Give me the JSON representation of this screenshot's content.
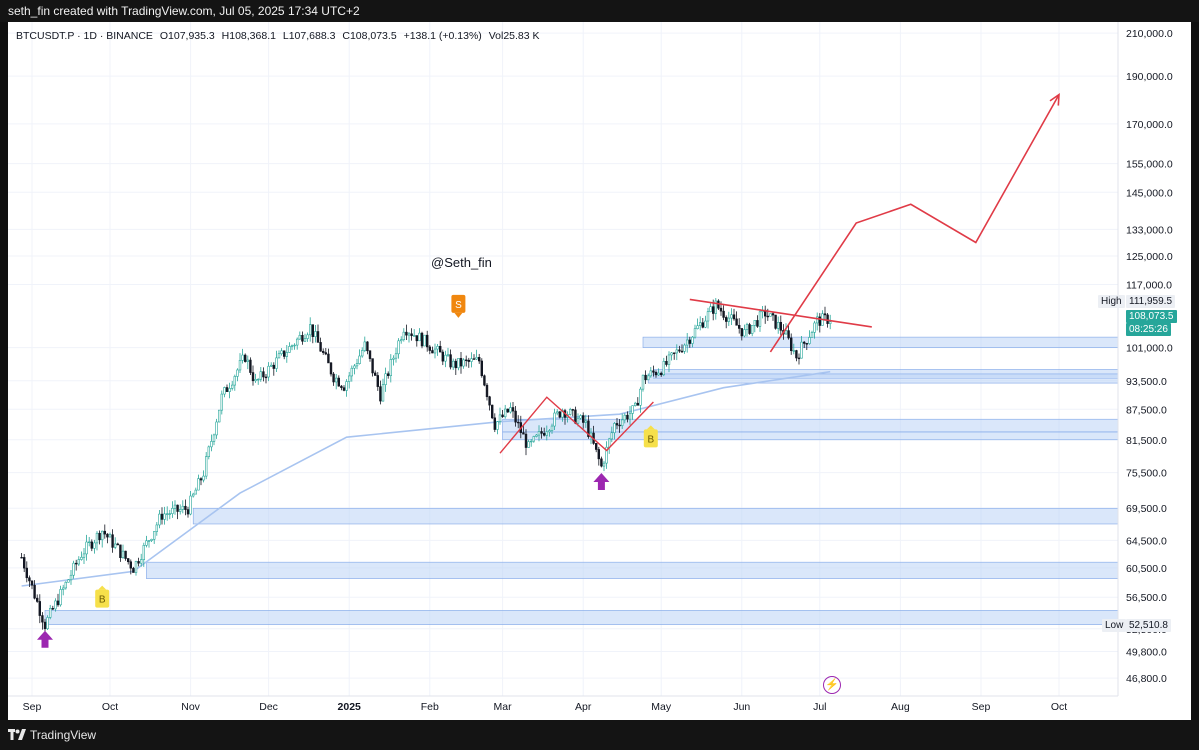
{
  "header": {
    "credit": "seth_fin created with TradingView.com, Jul 05, 2025 17:34 UTC+2"
  },
  "footer": {
    "brand": "TradingView"
  },
  "legend": {
    "symbol": "BTCUSDT.P · 1D · BINANCE",
    "open": "O107,935.3",
    "high": "H108,368.1",
    "low": "L107,688.3",
    "close": "C108,073.5",
    "change": "+138.1 (+0.13%)",
    "volume": "Vol25.83 K"
  },
  "watermark": "@Seth_fin",
  "price_tags": {
    "high_label": "High",
    "high_value": "111,959.5",
    "current_value": "108,073.5",
    "countdown": "08:25:26",
    "low_label": "Low",
    "low_value": "52,510.8"
  },
  "colors": {
    "up": "#26a69a",
    "down": "#131722",
    "red_line": "#e03b47",
    "zone": "#bcd3f5",
    "ma": "#a8c4f0",
    "current_tag": "#26a69a",
    "arrow": "#9c27b0",
    "buy_badge": "#f6e04a",
    "sell_badge": "#f0870f"
  },
  "chart_data": {
    "type": "candlestick",
    "y_scale": "log",
    "ylim": [
      45000,
      215000
    ],
    "y_ticks": [
      "210,000.0",
      "190,000.0",
      "170,000.0",
      "155,000.0",
      "145,000.0",
      "133,000.0",
      "125,000.0",
      "117,000.0",
      "101,000.0",
      "93,500.0",
      "87,500.0",
      "81,500.0",
      "75,500.0",
      "69,500.0",
      "64,500.0",
      "60,500.0",
      "56,500.0",
      "52,500.0",
      "49,800.0",
      "46,800.0"
    ],
    "x_labels": [
      "Sep",
      "Oct",
      "Nov",
      "Dec",
      "2025",
      "Feb",
      "Mar",
      "Apr",
      "May",
      "Jun",
      "Jul",
      "Aug",
      "Sep",
      "Oct"
    ],
    "x_label_dates": [
      "2024-09-01",
      "2024-10-01",
      "2024-11-01",
      "2024-12-01",
      "2025-01-01",
      "2025-02-01",
      "2025-03-01",
      "2025-04-01",
      "2025-05-01",
      "2025-06-01",
      "2025-07-01",
      "2025-08-01",
      "2025-09-01",
      "2025-10-01"
    ],
    "price_path": [
      [
        "2024-08-28",
        62000
      ],
      [
        "2024-09-06",
        53000
      ],
      [
        "2024-09-20",
        62500
      ],
      [
        "2024-09-28",
        66000
      ],
      [
        "2024-10-10",
        60500
      ],
      [
        "2024-10-21",
        68500
      ],
      [
        "2024-10-31",
        69500
      ],
      [
        "2024-11-06",
        75500
      ],
      [
        "2024-11-13",
        90000
      ],
      [
        "2024-11-22",
        99000
      ],
      [
        "2024-11-26",
        93000
      ],
      [
        "2024-12-05",
        98500
      ],
      [
        "2024-12-17",
        106000
      ],
      [
        "2024-12-26",
        94500
      ],
      [
        "2024-12-30",
        92500
      ],
      [
        "2025-01-07",
        101500
      ],
      [
        "2025-01-13",
        90500
      ],
      [
        "2025-01-22",
        106000
      ],
      [
        "2025-01-31",
        102000
      ],
      [
        "2025-02-10",
        97000
      ],
      [
        "2025-02-20",
        98000
      ],
      [
        "2025-02-26",
        84500
      ],
      [
        "2025-03-04",
        87500
      ],
      [
        "2025-03-11",
        80000
      ],
      [
        "2025-03-24",
        87500
      ],
      [
        "2025-04-02",
        84500
      ],
      [
        "2025-04-08",
        76500
      ],
      [
        "2025-04-13",
        84500
      ],
      [
        "2025-04-21",
        87500
      ],
      [
        "2025-04-24",
        94000
      ],
      [
        "2025-05-02",
        96500
      ],
      [
        "2025-05-12",
        103500
      ],
      [
        "2025-05-22",
        111500
      ],
      [
        "2025-06-02",
        104500
      ],
      [
        "2025-06-10",
        109500
      ],
      [
        "2025-06-17",
        105000
      ],
      [
        "2025-06-22",
        99000
      ],
      [
        "2025-06-30",
        107500
      ],
      [
        "2025-07-05",
        108073.5
      ]
    ],
    "ma_line": [
      [
        "2024-08-28",
        58000
      ],
      [
        "2024-10-10",
        60000
      ],
      [
        "2024-11-20",
        72000
      ],
      [
        "2024-12-31",
        82000
      ],
      [
        "2025-02-28",
        85000
      ],
      [
        "2025-04-15",
        86500
      ],
      [
        "2025-05-25",
        92000
      ],
      [
        "2025-07-05",
        95500
      ]
    ],
    "support_zones": [
      [
        101000,
        103500
      ],
      [
        94000,
        96000
      ],
      [
        93000,
        95000
      ],
      [
        83000,
        85500
      ],
      [
        81500,
        83000
      ],
      [
        67000,
        69500
      ],
      [
        59000,
        61300
      ],
      [
        53000,
        54800
      ]
    ],
    "drawings": {
      "resistance": [
        [
          "2025-05-12",
          113000
        ],
        [
          "2025-07-21",
          106000
        ]
      ],
      "zigzag_1": [
        [
          "2025-02-28",
          79000
        ],
        [
          "2025-03-18",
          90000
        ],
        [
          "2025-04-10",
          79500
        ],
        [
          "2025-04-28",
          89000
        ]
      ],
      "zigzag_2": [
        [
          "2025-06-12",
          100000
        ],
        [
          "2025-07-15",
          135000
        ],
        [
          "2025-08-05",
          141000
        ],
        [
          "2025-08-30",
          129000
        ],
        [
          "2025-10-01",
          182000
        ]
      ]
    },
    "signals": [
      {
        "type": "buy_arrow",
        "date": "2024-09-06",
        "price": 53000
      },
      {
        "type": "buy_badge",
        "date": "2024-09-28",
        "price": 57500,
        "label": "B"
      },
      {
        "type": "sell_badge",
        "date": "2025-02-12",
        "price": 106500,
        "label": "S"
      },
      {
        "type": "buy_arrow",
        "date": "2025-04-08",
        "price": 76500
      },
      {
        "type": "buy_badge",
        "date": "2025-04-27",
        "price": 83500,
        "label": "B"
      }
    ]
  }
}
